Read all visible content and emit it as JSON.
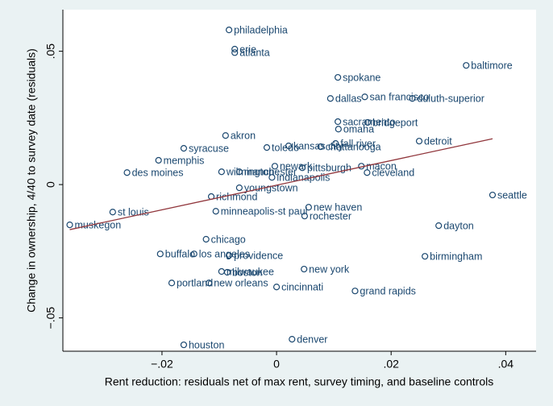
{
  "chart_data": {
    "type": "scatter",
    "xlabel": "Rent reduction: residuals net of max rent, survey timing, and baseline controls",
    "ylabel": "Change in ownership, 4/40 to survey date (residuals)",
    "xlim": [
      -0.0373,
      0.0453
    ],
    "ylim": [
      -0.0625,
      0.0656
    ],
    "xticks": [
      {
        "value": -0.02,
        "label": "−.02"
      },
      0,
      {
        "value": 0.02,
        "label": ".02"
      },
      {
        "value": 0.04,
        "label": ".04"
      }
    ],
    "yticks": [
      {
        "value": -0.05,
        "label": "−.05"
      },
      0,
      {
        "value": 0.05,
        "label": ".05"
      }
    ],
    "color": "#1a476f",
    "series": [
      {
        "name": "cities",
        "color": "#1a476f",
        "labels": [
          "philadelphia",
          "erie",
          "atlanta",
          "baltimore",
          "spokane",
          "dallas",
          "san francisco",
          "duluth-superior",
          "sacramento",
          "bridgeport",
          "omaha",
          "akron",
          "syracuse",
          "toledo",
          "kansas city",
          "chattanooga",
          "fall river",
          "detroit",
          "memphis",
          "des moines",
          "wilmington",
          "manchester",
          "newark",
          "indianapolis",
          "pittsburgh",
          "macon",
          "cleveland",
          "seattle",
          "youngstown",
          "richmond",
          "st louis",
          "minneapolis-st paul",
          "new haven",
          "rochester",
          "muskegon",
          "dayton",
          "chicago",
          "buffalo",
          "los angeles",
          "providence",
          "birmingham",
          "milwaukee",
          "boston",
          "new york",
          "portland",
          "new orleans",
          "cincinnati",
          "grand rapids",
          "denver",
          "houston"
        ],
        "x": [
          -0.0083,
          -0.0073,
          -0.0073,
          0.0331,
          0.0107,
          0.0094,
          0.0154,
          0.0237,
          0.0107,
          0.0159,
          0.0108,
          -0.0089,
          -0.0162,
          -0.0017,
          0.0021,
          0.0077,
          0.0103,
          0.0249,
          -0.0206,
          -0.0261,
          -0.0096,
          -0.0065,
          -0.0003,
          -0.0008,
          0.0045,
          0.0148,
          0.0158,
          0.0377,
          -0.0065,
          -0.0114,
          -0.0286,
          -0.0106,
          0.0056,
          0.0049,
          -0.0361,
          0.0283,
          -0.0123,
          -0.0203,
          -0.0144,
          -0.0083,
          0.0259,
          -0.0096,
          -0.0086,
          0.0048,
          -0.0183,
          -0.0118,
          0.0,
          0.0137,
          0.0027,
          -0.0162
        ],
        "values": [
          0.058,
          0.0508,
          0.0495,
          0.0447,
          0.0402,
          0.0323,
          0.0329,
          0.0323,
          0.0236,
          0.0233,
          0.0208,
          0.0184,
          0.0136,
          0.0139,
          0.0145,
          0.0142,
          0.0154,
          0.0163,
          0.0091,
          0.0045,
          0.0048,
          0.0048,
          0.0069,
          0.0027,
          0.0063,
          0.0069,
          0.0045,
          -0.0039,
          -0.0012,
          -0.0045,
          -0.0103,
          -0.01,
          -0.0085,
          -0.0118,
          -0.0151,
          -0.0154,
          -0.0205,
          -0.026,
          -0.026,
          -0.0266,
          -0.0269,
          -0.0326,
          -0.0329,
          -0.0317,
          -0.0369,
          -0.0369,
          -0.0384,
          -0.0399,
          -0.058,
          -0.0601
        ]
      }
    ],
    "fit_line": {
      "color": "#90353b",
      "x": [
        -0.0361,
        0.0377
      ],
      "values": [
        -0.0169,
        0.0172
      ]
    }
  }
}
